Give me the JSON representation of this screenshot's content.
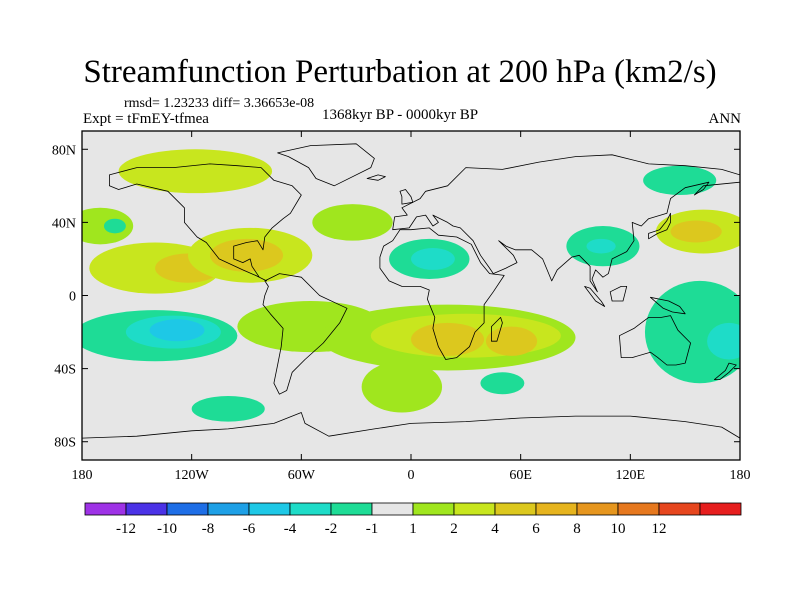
{
  "title": "Streamfunction Perturbation at 200 hPa (km2/s)",
  "stats": "rmsd= 1.23233 diff= 3.36653e-08",
  "experiment": "Expt = tFmEY-tfmea",
  "period": "1368kyr BP - 0000kyr BP",
  "season": "ANN",
  "axes": {
    "lon_range": [
      -180,
      180
    ],
    "lat_range": [
      -90,
      90
    ],
    "x_ticks": [
      {
        "value": -180,
        "label": "180"
      },
      {
        "value": -120,
        "label": "120W"
      },
      {
        "value": -60,
        "label": "60W"
      },
      {
        "value": 0,
        "label": "0"
      },
      {
        "value": 60,
        "label": "60E"
      },
      {
        "value": 120,
        "label": "120E"
      },
      {
        "value": 180,
        "label": "180"
      }
    ],
    "y_ticks": [
      {
        "value": 80,
        "label": "80N"
      },
      {
        "value": 40,
        "label": "40N"
      },
      {
        "value": 0,
        "label": "0"
      },
      {
        "value": -40,
        "label": "40S"
      },
      {
        "value": -80,
        "label": "80S"
      }
    ]
  },
  "colorbar": {
    "colors": [
      "#9e32e6",
      "#4b32e6",
      "#1e6ee6",
      "#1ea0e6",
      "#1ec8e6",
      "#1edcc8",
      "#1edc96",
      "#e6e6e6",
      "#a0e61e",
      "#c8e61e",
      "#dcc81e",
      "#e6b41e",
      "#e6961e",
      "#e6781e",
      "#e6461e",
      "#e61e1e"
    ],
    "labels": [
      "-12",
      "-10",
      "-8",
      "-6",
      "-4",
      "-2",
      "-1",
      "1",
      "2",
      "4",
      "6",
      "8",
      "10",
      "12"
    ]
  },
  "anomalies": [
    {
      "name": "canada-positive",
      "lon": -118,
      "lat": 68,
      "rx": 42,
      "ry": 12,
      "level": 2
    },
    {
      "name": "north-pacific-east-positive",
      "lon": -170,
      "lat": 38,
      "rx": 18,
      "ry": 10,
      "level": 1
    },
    {
      "name": "west-africa-positive",
      "lon": -32,
      "lat": 40,
      "rx": 22,
      "ry": 10,
      "level": 1
    },
    {
      "name": "east-pacific-positive",
      "lon": -140,
      "lat": 15,
      "rx": 36,
      "ry": 14,
      "level": 2
    },
    {
      "name": "east-pacific-core",
      "lon": -122,
      "lat": 15,
      "rx": 18,
      "ry": 8,
      "level": 3
    },
    {
      "name": "caribbean-positive",
      "lon": -88,
      "lat": 22,
      "rx": 34,
      "ry": 15,
      "level": 2
    },
    {
      "name": "caribbean-core",
      "lon": -90,
      "lat": 22,
      "rx": 20,
      "ry": 9,
      "level": 3
    },
    {
      "name": "south-america-atlantic-positive",
      "lon": -55,
      "lat": -17,
      "rx": 40,
      "ry": 14,
      "level": 1
    },
    {
      "name": "south-atlantic-africa-positive",
      "lon": 20,
      "lat": -23,
      "rx": 70,
      "ry": 18,
      "level": 1
    },
    {
      "name": "south-atlantic-africa-mid",
      "lon": 30,
      "lat": -22,
      "rx": 52,
      "ry": 12,
      "level": 2
    },
    {
      "name": "south-africa-core",
      "lon": 20,
      "lat": -24,
      "rx": 20,
      "ry": 9,
      "level": 3
    },
    {
      "name": "mozambique-core",
      "lon": 55,
      "lat": -25,
      "rx": 14,
      "ry": 8,
      "level": 3
    },
    {
      "name": "southern-ocean-positive",
      "lon": -5,
      "lat": -50,
      "rx": 22,
      "ry": 14,
      "level": 1
    },
    {
      "name": "nw-pacific-positive",
      "lon": 160,
      "lat": 35,
      "rx": 26,
      "ry": 12,
      "level": 2
    },
    {
      "name": "nw-pacific-core",
      "lon": 156,
      "lat": 35,
      "rx": 14,
      "ry": 6,
      "level": 3
    },
    {
      "name": "north-atlantic-negative",
      "lon": -162,
      "lat": 38,
      "rx": 6,
      "ry": 4,
      "level": -1
    },
    {
      "name": "sahara-negative",
      "lon": 10,
      "lat": 20,
      "rx": 22,
      "ry": 11,
      "level": -1
    },
    {
      "name": "sahara-core",
      "lon": 12,
      "lat": 20,
      "rx": 12,
      "ry": 6,
      "level": -2
    },
    {
      "name": "tibet-negative",
      "lon": 105,
      "lat": 27,
      "rx": 20,
      "ry": 11,
      "level": -1
    },
    {
      "name": "tibet-core",
      "lon": 104,
      "lat": 27,
      "rx": 8,
      "ry": 4,
      "level": -2
    },
    {
      "name": "siberia-negative",
      "lon": 147,
      "lat": 63,
      "rx": 20,
      "ry": 8,
      "level": -1
    },
    {
      "name": "south-pacific-negative",
      "lon": -140,
      "lat": -22,
      "rx": 45,
      "ry": 14,
      "level": -1
    },
    {
      "name": "south-pacific-mid",
      "lon": -130,
      "lat": -20,
      "rx": 26,
      "ry": 9,
      "level": -2
    },
    {
      "name": "south-pacific-core",
      "lon": -128,
      "lat": -19,
      "rx": 15,
      "ry": 6,
      "level": -3
    },
    {
      "name": "west-pacific-negative",
      "lon": 158,
      "lat": -20,
      "rx": 30,
      "ry": 28,
      "level": -1
    },
    {
      "name": "west-pacific-core",
      "lon": 174,
      "lat": -25,
      "rx": 12,
      "ry": 10,
      "level": -2
    },
    {
      "name": "southern-indian-negative",
      "lon": 50,
      "lat": -48,
      "rx": 12,
      "ry": 6,
      "level": -1
    },
    {
      "name": "south-ocean-pacific-negative",
      "lon": -100,
      "lat": -62,
      "rx": 20,
      "ry": 7,
      "level": -1
    }
  ],
  "coastlines": [
    {
      "name": "north-america",
      "points": [
        [
          -165,
          66
        ],
        [
          -150,
          70
        ],
        [
          -130,
          70
        ],
        [
          -110,
          72
        ],
        [
          -95,
          71
        ],
        [
          -82,
          70
        ],
        [
          -75,
          63
        ],
        [
          -65,
          60
        ],
        [
          -60,
          55
        ],
        [
          -66,
          45
        ],
        [
          -70,
          42
        ],
        [
          -76,
          37
        ],
        [
          -80,
          32
        ],
        [
          -81,
          25
        ],
        [
          -84,
          30
        ],
        [
          -90,
          29
        ],
        [
          -97,
          27
        ],
        [
          -97,
          20
        ],
        [
          -92,
          18
        ],
        [
          -88,
          20
        ],
        [
          -87,
          16
        ],
        [
          -83,
          10
        ],
        [
          -79,
          8
        ],
        [
          -85,
          11
        ],
        [
          -92,
          14
        ],
        [
          -105,
          20
        ],
        [
          -112,
          29
        ],
        [
          -117,
          32
        ],
        [
          -124,
          40
        ],
        [
          -124,
          48
        ],
        [
          -133,
          57
        ],
        [
          -150,
          61
        ],
        [
          -160,
          58
        ],
        [
          -165,
          60
        ],
        [
          -165,
          66
        ]
      ]
    },
    {
      "name": "south-america",
      "points": [
        [
          -80,
          8
        ],
        [
          -72,
          12
        ],
        [
          -60,
          10
        ],
        [
          -50,
          0
        ],
        [
          -35,
          -7
        ],
        [
          -39,
          -15
        ],
        [
          -48,
          -26
        ],
        [
          -58,
          -35
        ],
        [
          -65,
          -42
        ],
        [
          -68,
          -52
        ],
        [
          -72,
          -54
        ],
        [
          -75,
          -48
        ],
        [
          -73,
          -38
        ],
        [
          -71,
          -28
        ],
        [
          -70,
          -18
        ],
        [
          -77,
          -10
        ],
        [
          -81,
          -5
        ],
        [
          -80,
          0
        ],
        [
          -78,
          5
        ],
        [
          -80,
          8
        ]
      ]
    },
    {
      "name": "africa",
      "points": [
        [
          -17,
          21
        ],
        [
          -17,
          15
        ],
        [
          -12,
          8
        ],
        [
          -5,
          5
        ],
        [
          5,
          5
        ],
        [
          10,
          3
        ],
        [
          9,
          -2
        ],
        [
          13,
          -12
        ],
        [
          12,
          -18
        ],
        [
          15,
          -28
        ],
        [
          19,
          -35
        ],
        [
          25,
          -34
        ],
        [
          32,
          -28
        ],
        [
          35,
          -20
        ],
        [
          40,
          -15
        ],
        [
          40,
          -5
        ],
        [
          45,
          2
        ],
        [
          51,
          11
        ],
        [
          43,
          12
        ],
        [
          38,
          18
        ],
        [
          33,
          28
        ],
        [
          25,
          32
        ],
        [
          15,
          33
        ],
        [
          10,
          37
        ],
        [
          0,
          36
        ],
        [
          -6,
          36
        ],
        [
          -10,
          30
        ],
        [
          -15,
          27
        ],
        [
          -17,
          21
        ]
      ]
    },
    {
      "name": "eurasia",
      "points": [
        [
          -10,
          36
        ],
        [
          -9,
          43
        ],
        [
          -2,
          44
        ],
        [
          -5,
          48
        ],
        [
          5,
          53
        ],
        [
          8,
          57
        ],
        [
          20,
          60
        ],
        [
          30,
          70
        ],
        [
          50,
          69
        ],
        [
          70,
          73
        ],
        [
          90,
          76
        ],
        [
          110,
          77
        ],
        [
          130,
          72
        ],
        [
          150,
          71
        ],
        [
          170,
          69
        ],
        [
          180,
          66
        ],
        [
          180,
          62
        ],
        [
          160,
          60
        ],
        [
          155,
          55
        ],
        [
          160,
          58
        ],
        [
          163,
          62
        ],
        [
          150,
          59
        ],
        [
          142,
          53
        ],
        [
          140,
          45
        ],
        [
          130,
          42
        ],
        [
          126,
          38
        ],
        [
          121,
          40
        ],
        [
          122,
          30
        ],
        [
          118,
          24
        ],
        [
          110,
          20
        ],
        [
          108,
          12
        ],
        [
          105,
          10
        ],
        [
          101,
          14
        ],
        [
          99,
          9
        ],
        [
          102,
          2
        ],
        [
          98,
          8
        ],
        [
          98,
          16
        ],
        [
          92,
          22
        ],
        [
          88,
          21
        ],
        [
          80,
          14
        ],
        [
          77,
          8
        ],
        [
          72,
          20
        ],
        [
          66,
          25
        ],
        [
          57,
          25
        ],
        [
          52,
          27
        ],
        [
          48,
          30
        ],
        [
          56,
          22
        ],
        [
          58,
          18
        ],
        [
          52,
          15
        ],
        [
          45,
          12
        ],
        [
          43,
          15
        ],
        [
          38,
          22
        ],
        [
          34,
          30
        ],
        [
          27,
          37
        ],
        [
          23,
          38
        ],
        [
          20,
          40
        ],
        [
          12,
          44
        ],
        [
          15,
          40
        ],
        [
          12,
          38
        ],
        [
          8,
          44
        ],
        [
          3,
          43
        ],
        [
          -1,
          37
        ],
        [
          -10,
          36
        ]
      ]
    },
    {
      "name": "australia",
      "points": [
        [
          114,
          -22
        ],
        [
          122,
          -18
        ],
        [
          130,
          -12
        ],
        [
          137,
          -12
        ],
        [
          142,
          -11
        ],
        [
          146,
          -19
        ],
        [
          153,
          -26
        ],
        [
          150,
          -37
        ],
        [
          145,
          -38
        ],
        [
          140,
          -38
        ],
        [
          135,
          -34
        ],
        [
          131,
          -31
        ],
        [
          121,
          -34
        ],
        [
          115,
          -34
        ],
        [
          114,
          -22
        ]
      ]
    },
    {
      "name": "greenland",
      "points": [
        [
          -73,
          78
        ],
        [
          -55,
          82
        ],
        [
          -30,
          83
        ],
        [
          -20,
          75
        ],
        [
          -22,
          70
        ],
        [
          -42,
          60
        ],
        [
          -52,
          64
        ],
        [
          -56,
          70
        ],
        [
          -67,
          76
        ],
        [
          -73,
          78
        ]
      ]
    },
    {
      "name": "antarctica",
      "points": [
        [
          -180,
          -78
        ],
        [
          -150,
          -77
        ],
        [
          -120,
          -74
        ],
        [
          -100,
          -73
        ],
        [
          -75,
          -70
        ],
        [
          -60,
          -64
        ],
        [
          -58,
          -70
        ],
        [
          -45,
          -77
        ],
        [
          -20,
          -73
        ],
        [
          0,
          -70
        ],
        [
          30,
          -69
        ],
        [
          60,
          -67
        ],
        [
          90,
          -66
        ],
        [
          120,
          -66
        ],
        [
          150,
          -69
        ],
        [
          170,
          -72
        ],
        [
          180,
          -78
        ]
      ],
      "open": true
    },
    {
      "name": "madagascar",
      "points": [
        [
          44,
          -25
        ],
        [
          47,
          -25
        ],
        [
          50,
          -15
        ],
        [
          49,
          -12
        ],
        [
          44,
          -17
        ],
        [
          44,
          -25
        ]
      ]
    },
    {
      "name": "great-britain",
      "points": [
        [
          -5,
          50
        ],
        [
          1,
          51
        ],
        [
          0,
          54
        ],
        [
          -3,
          58
        ],
        [
          -6,
          57
        ],
        [
          -5,
          54
        ],
        [
          -5,
          50
        ]
      ]
    },
    {
      "name": "japan",
      "points": [
        [
          130,
          31
        ],
        [
          135,
          34
        ],
        [
          140,
          36
        ],
        [
          142,
          40
        ],
        [
          142,
          45
        ],
        [
          140,
          41
        ],
        [
          136,
          36
        ],
        [
          130,
          34
        ],
        [
          130,
          31
        ]
      ]
    },
    {
      "name": "new-zealand",
      "points": [
        [
          166,
          -46
        ],
        [
          172,
          -41
        ],
        [
          174,
          -37
        ],
        [
          178,
          -38
        ],
        [
          174,
          -42
        ],
        [
          169,
          -46
        ],
        [
          166,
          -46
        ]
      ]
    },
    {
      "name": "borneo",
      "points": [
        [
          109,
          2
        ],
        [
          115,
          5
        ],
        [
          118,
          5
        ],
        [
          117,
          1
        ],
        [
          116,
          -3
        ],
        [
          110,
          -3
        ],
        [
          109,
          2
        ]
      ]
    },
    {
      "name": "sumatra",
      "points": [
        [
          95,
          5
        ],
        [
          98,
          4
        ],
        [
          104,
          -3
        ],
        [
          106,
          -6
        ],
        [
          101,
          -3
        ],
        [
          95,
          5
        ]
      ]
    },
    {
      "name": "new-guinea",
      "points": [
        [
          131,
          -1
        ],
        [
          141,
          -3
        ],
        [
          147,
          -6
        ],
        [
          150,
          -10
        ],
        [
          143,
          -9
        ],
        [
          138,
          -7
        ],
        [
          131,
          -1
        ]
      ]
    },
    {
      "name": "iceland",
      "points": [
        [
          -24,
          64
        ],
        [
          -18,
          66
        ],
        [
          -14,
          65
        ],
        [
          -18,
          63
        ],
        [
          -24,
          64
        ]
      ]
    }
  ]
}
